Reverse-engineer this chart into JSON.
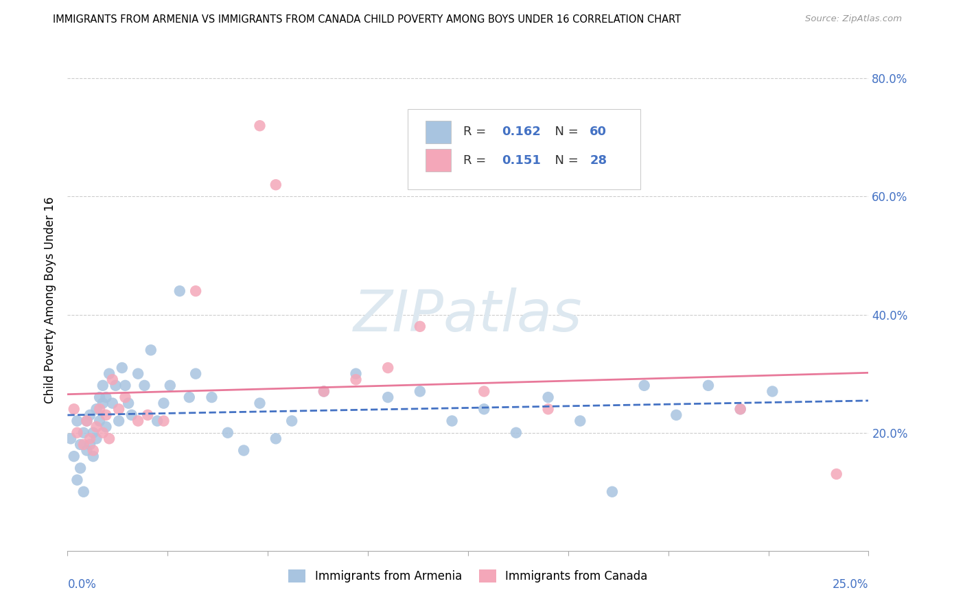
{
  "title": "IMMIGRANTS FROM ARMENIA VS IMMIGRANTS FROM CANADA CHILD POVERTY AMONG BOYS UNDER 16 CORRELATION CHART",
  "source": "Source: ZipAtlas.com",
  "ylabel": "Child Poverty Among Boys Under 16",
  "r_armenia": 0.162,
  "n_armenia": 60,
  "r_canada": 0.151,
  "n_canada": 28,
  "color_armenia": "#a8c4e0",
  "color_canada": "#f4a7b9",
  "color_line": "#4472c4",
  "color_canada_line": "#e8799a",
  "xlim": [
    0.0,
    0.25
  ],
  "ylim": [
    0.0,
    0.85
  ],
  "yticks": [
    0.2,
    0.4,
    0.6,
    0.8
  ],
  "ytick_labels": [
    "20.0%",
    "40.0%",
    "60.0%",
    "80.0%"
  ],
  "armenia_x": [
    0.001,
    0.002,
    0.003,
    0.003,
    0.004,
    0.004,
    0.005,
    0.005,
    0.006,
    0.006,
    0.007,
    0.007,
    0.008,
    0.008,
    0.009,
    0.009,
    0.01,
    0.01,
    0.011,
    0.011,
    0.012,
    0.012,
    0.013,
    0.014,
    0.015,
    0.016,
    0.017,
    0.018,
    0.019,
    0.02,
    0.022,
    0.024,
    0.026,
    0.028,
    0.03,
    0.032,
    0.035,
    0.038,
    0.04,
    0.045,
    0.05,
    0.055,
    0.06,
    0.065,
    0.07,
    0.08,
    0.09,
    0.1,
    0.11,
    0.12,
    0.13,
    0.14,
    0.15,
    0.16,
    0.17,
    0.18,
    0.19,
    0.2,
    0.21,
    0.22
  ],
  "armenia_y": [
    0.19,
    0.16,
    0.22,
    0.12,
    0.18,
    0.14,
    0.2,
    0.1,
    0.17,
    0.22,
    0.18,
    0.23,
    0.2,
    0.16,
    0.24,
    0.19,
    0.22,
    0.26,
    0.28,
    0.25,
    0.21,
    0.26,
    0.3,
    0.25,
    0.28,
    0.22,
    0.31,
    0.28,
    0.25,
    0.23,
    0.3,
    0.28,
    0.34,
    0.22,
    0.25,
    0.28,
    0.44,
    0.26,
    0.3,
    0.26,
    0.2,
    0.17,
    0.25,
    0.19,
    0.22,
    0.27,
    0.3,
    0.26,
    0.27,
    0.22,
    0.24,
    0.2,
    0.26,
    0.22,
    0.1,
    0.28,
    0.23,
    0.28,
    0.24,
    0.27
  ],
  "canada_x": [
    0.002,
    0.003,
    0.005,
    0.006,
    0.007,
    0.008,
    0.009,
    0.01,
    0.011,
    0.012,
    0.013,
    0.014,
    0.016,
    0.018,
    0.022,
    0.025,
    0.03,
    0.04,
    0.06,
    0.065,
    0.08,
    0.09,
    0.1,
    0.11,
    0.13,
    0.15,
    0.21,
    0.24
  ],
  "canada_y": [
    0.24,
    0.2,
    0.18,
    0.22,
    0.19,
    0.17,
    0.21,
    0.24,
    0.2,
    0.23,
    0.19,
    0.29,
    0.24,
    0.26,
    0.22,
    0.23,
    0.22,
    0.44,
    0.72,
    0.62,
    0.27,
    0.29,
    0.31,
    0.38,
    0.27,
    0.24,
    0.24,
    0.13
  ]
}
